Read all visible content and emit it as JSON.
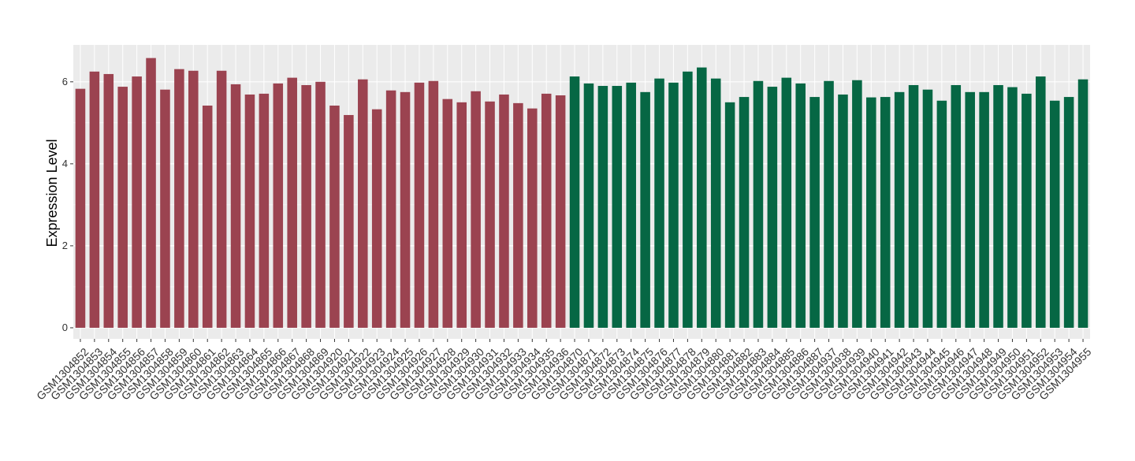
{
  "chart_data": {
    "type": "bar",
    "y_label": "Expression Level",
    "categories": [
      "GSM1304852",
      "GSM1304853",
      "GSM1304854",
      "GSM1304855",
      "GSM1304856",
      "GSM1304857",
      "GSM1304858",
      "GSM1304859",
      "GSM1304860",
      "GSM1304861",
      "GSM1304862",
      "GSM1304863",
      "GSM1304864",
      "GSM1304865",
      "GSM1304866",
      "GSM1304867",
      "GSM1304868",
      "GSM1304869",
      "GSM1304920",
      "GSM1304921",
      "GSM1304922",
      "GSM1304923",
      "GSM1304924",
      "GSM1304925",
      "GSM1304926",
      "GSM1304927",
      "GSM1304928",
      "GSM1304929",
      "GSM1304930",
      "GSM1304931",
      "GSM1304932",
      "GSM1304933",
      "GSM1304934",
      "GSM1304935",
      "GSM1304936",
      "GSM1304870",
      "GSM1304871",
      "GSM1304872",
      "GSM1304873",
      "GSM1304874",
      "GSM1304875",
      "GSM1304876",
      "GSM1304877",
      "GSM1304878",
      "GSM1304879",
      "GSM1304880",
      "GSM1304881",
      "GSM1304882",
      "GSM1304883",
      "GSM1304884",
      "GSM1304885",
      "GSM1304886",
      "GSM1304887",
      "GSM1304937",
      "GSM1304938",
      "GSM1304939",
      "GSM1304940",
      "GSM1304941",
      "GSM1304942",
      "GSM1304943",
      "GSM1304944",
      "GSM1304945",
      "GSM1304946",
      "GSM1304947",
      "GSM1304948",
      "GSM1304949",
      "GSM1304950",
      "GSM1304951",
      "GSM1304952",
      "GSM1304953",
      "GSM1304954",
      "GSM1304955"
    ],
    "values": [
      5.83,
      6.25,
      6.19,
      5.88,
      6.13,
      6.58,
      5.81,
      6.31,
      6.27,
      5.42,
      6.27,
      5.94,
      5.69,
      5.71,
      5.96,
      6.1,
      5.92,
      6.0,
      5.42,
      5.19,
      6.06,
      5.33,
      5.79,
      5.75,
      5.98,
      6.02,
      5.58,
      5.5,
      5.77,
      5.52,
      5.69,
      5.48,
      5.35,
      5.71,
      5.67,
      6.13,
      5.96,
      5.9,
      5.9,
      5.98,
      5.75,
      6.08,
      5.98,
      6.25,
      6.35,
      6.08,
      5.5,
      5.63,
      6.02,
      5.88,
      6.1,
      5.96,
      5.63,
      6.02,
      5.69,
      6.04,
      5.62,
      5.63,
      5.75,
      5.92,
      5.81,
      5.54,
      5.92,
      5.75,
      5.75,
      5.92,
      5.87,
      5.71,
      6.13,
      5.54,
      5.63,
      6.06
    ],
    "colors": [
      "#9b4350",
      "#9b4350",
      "#9b4350",
      "#9b4350",
      "#9b4350",
      "#9b4350",
      "#9b4350",
      "#9b4350",
      "#9b4350",
      "#9b4350",
      "#9b4350",
      "#9b4350",
      "#9b4350",
      "#9b4350",
      "#9b4350",
      "#9b4350",
      "#9b4350",
      "#9b4350",
      "#9b4350",
      "#9b4350",
      "#9b4350",
      "#9b4350",
      "#9b4350",
      "#9b4350",
      "#9b4350",
      "#9b4350",
      "#9b4350",
      "#9b4350",
      "#9b4350",
      "#9b4350",
      "#9b4350",
      "#9b4350",
      "#9b4350",
      "#9b4350",
      "#9b4350",
      "#066744",
      "#066744",
      "#066744",
      "#066744",
      "#066744",
      "#066744",
      "#066744",
      "#066744",
      "#066744",
      "#066744",
      "#066744",
      "#066744",
      "#066744",
      "#066744",
      "#066744",
      "#066744",
      "#066744",
      "#066744",
      "#066744",
      "#066744",
      "#066744",
      "#066744",
      "#066744",
      "#066744",
      "#066744",
      "#066744",
      "#066744",
      "#066744",
      "#066744",
      "#066744",
      "#066744",
      "#066744",
      "#066744",
      "#066744",
      "#066744",
      "#066744",
      "#066744"
    ],
    "ylim": [
      -0.27,
      6.9
    ],
    "yticks": [
      0,
      2,
      4,
      6
    ],
    "grid": true
  }
}
